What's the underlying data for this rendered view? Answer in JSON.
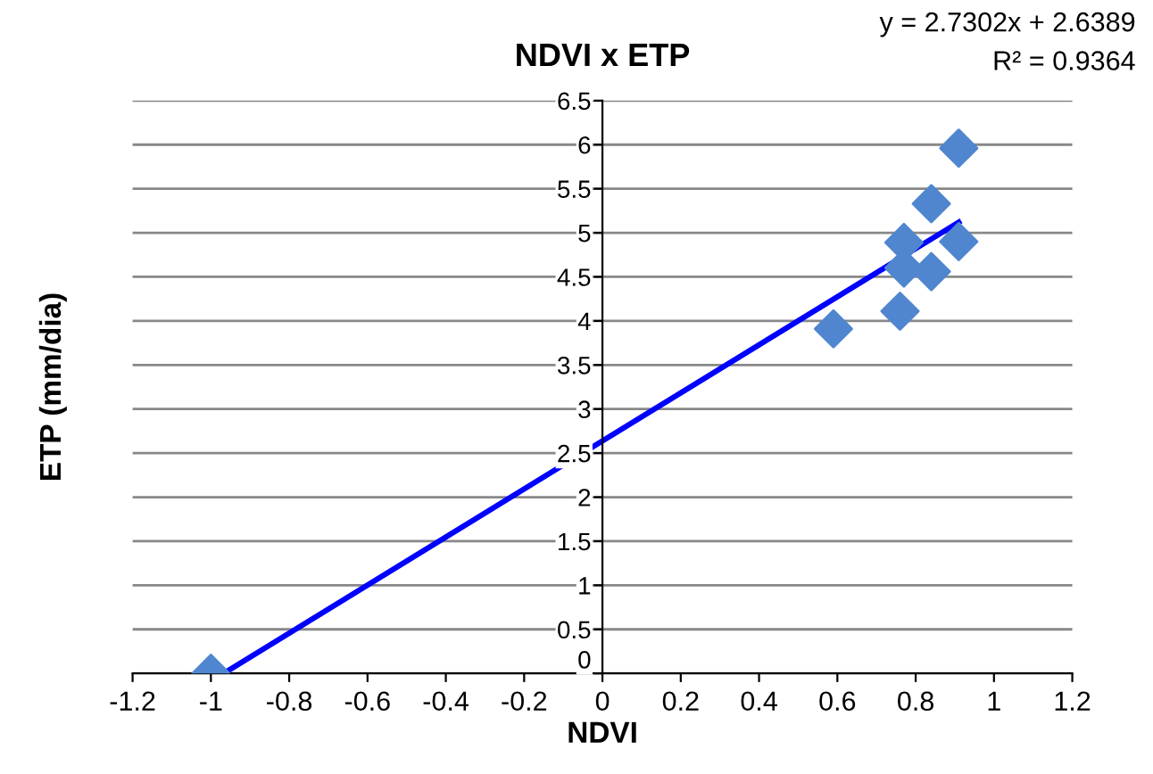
{
  "chart_data": {
    "type": "scatter",
    "title": "NDVI x ETP",
    "xlabel": "NDVI",
    "ylabel": "ETP (mm/dia)",
    "series": [
      {
        "type": "scatter",
        "color": "#4f86cf",
        "marker": "diamond",
        "x": [
          -1,
          0.59,
          0.76,
          0.77,
          0.77,
          0.84,
          0.84,
          0.91,
          0.91
        ],
        "values": [
          0,
          3.91,
          4.11,
          4.89,
          4.6,
          5.33,
          4.56,
          5.96,
          4.9
        ]
      },
      {
        "type": "line",
        "color": "#0000ff",
        "line_style": "solid",
        "x": [
          -0.96,
          0.91
        ],
        "values": [
          0.02,
          5.12
        ]
      }
    ],
    "xlim": [
      -1.2,
      1.2
    ],
    "xticks": [
      -1.2,
      -1,
      -0.8,
      -0.6,
      -0.4,
      -0.2,
      0,
      0.2,
      0.4,
      0.6,
      0.8,
      1,
      1.2
    ],
    "ylim": [
      0,
      6.5
    ],
    "yticks": [
      0,
      0.5,
      1,
      1.5,
      2,
      2.5,
      3,
      3.5,
      4,
      4.5,
      5,
      5.5,
      6,
      6.5
    ],
    "grid": "y",
    "annotations": [
      "y = 2.7302x + 2.6389",
      "R² = 0.9364"
    ]
  }
}
